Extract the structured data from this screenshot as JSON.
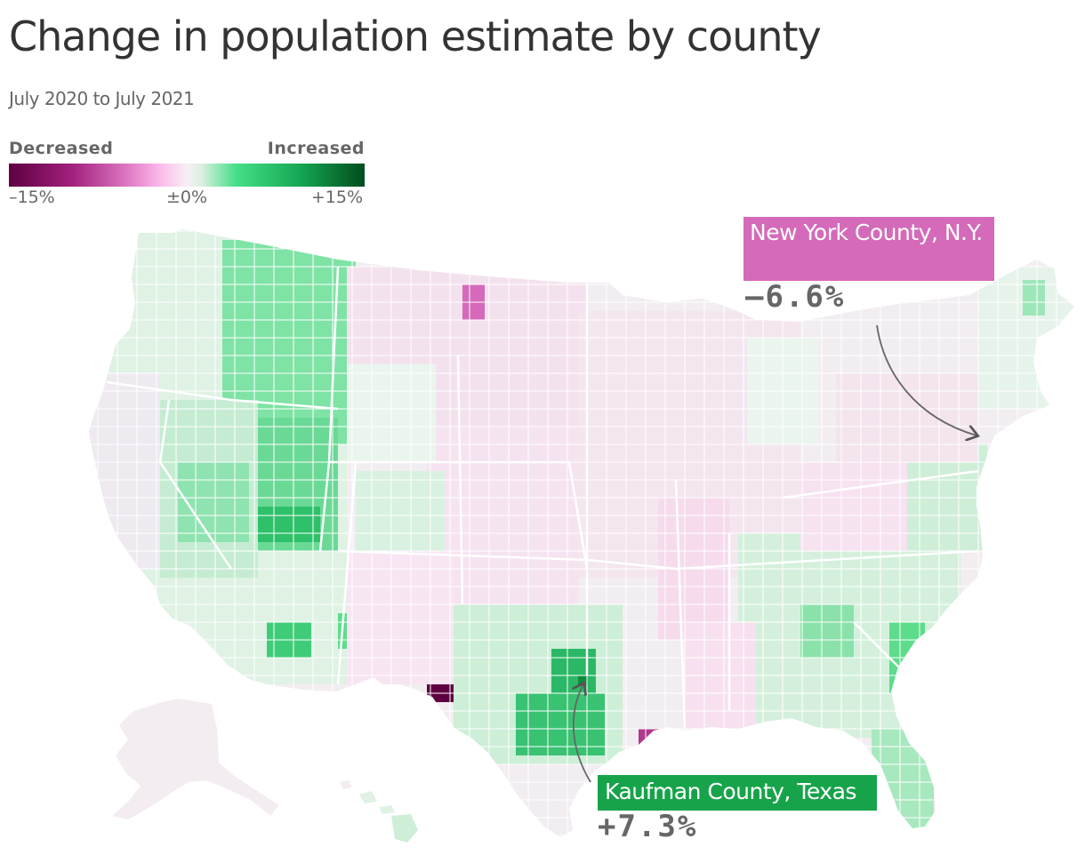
{
  "title": "Change in population estimate by county",
  "subtitle": "July 2020 to July 2021",
  "legend": {
    "low_label": "Decreased",
    "high_label": "Increased",
    "min_tick": "–15%",
    "mid_tick": "±0%",
    "max_tick": "+15%",
    "scale_colors": [
      "#5e0040",
      "#a3217f",
      "#e07dc6",
      "#fbb6ea",
      "#f7f0f5",
      "#dcefe1",
      "#44df87",
      "#16a653",
      "#004d1d"
    ]
  },
  "colors": {
    "strong_decrease": "#5e0040",
    "decrease": "#d46ab9",
    "light_decrease": "#f9d6ef",
    "neutral": "#f4eff3",
    "light_increase": "#dff2e4",
    "increase": "#5ddc8c",
    "strong_increase": "#17a34a"
  },
  "annotations": [
    {
      "id": "new-york-county",
      "name": "New York County, N.Y.",
      "value": "–6.6%",
      "box_color": "#d46ab9"
    },
    {
      "id": "kaufman-county",
      "name": "Kaufman County, Texas",
      "value": "+7.3%",
      "box_color": "#17a34a"
    }
  ]
}
